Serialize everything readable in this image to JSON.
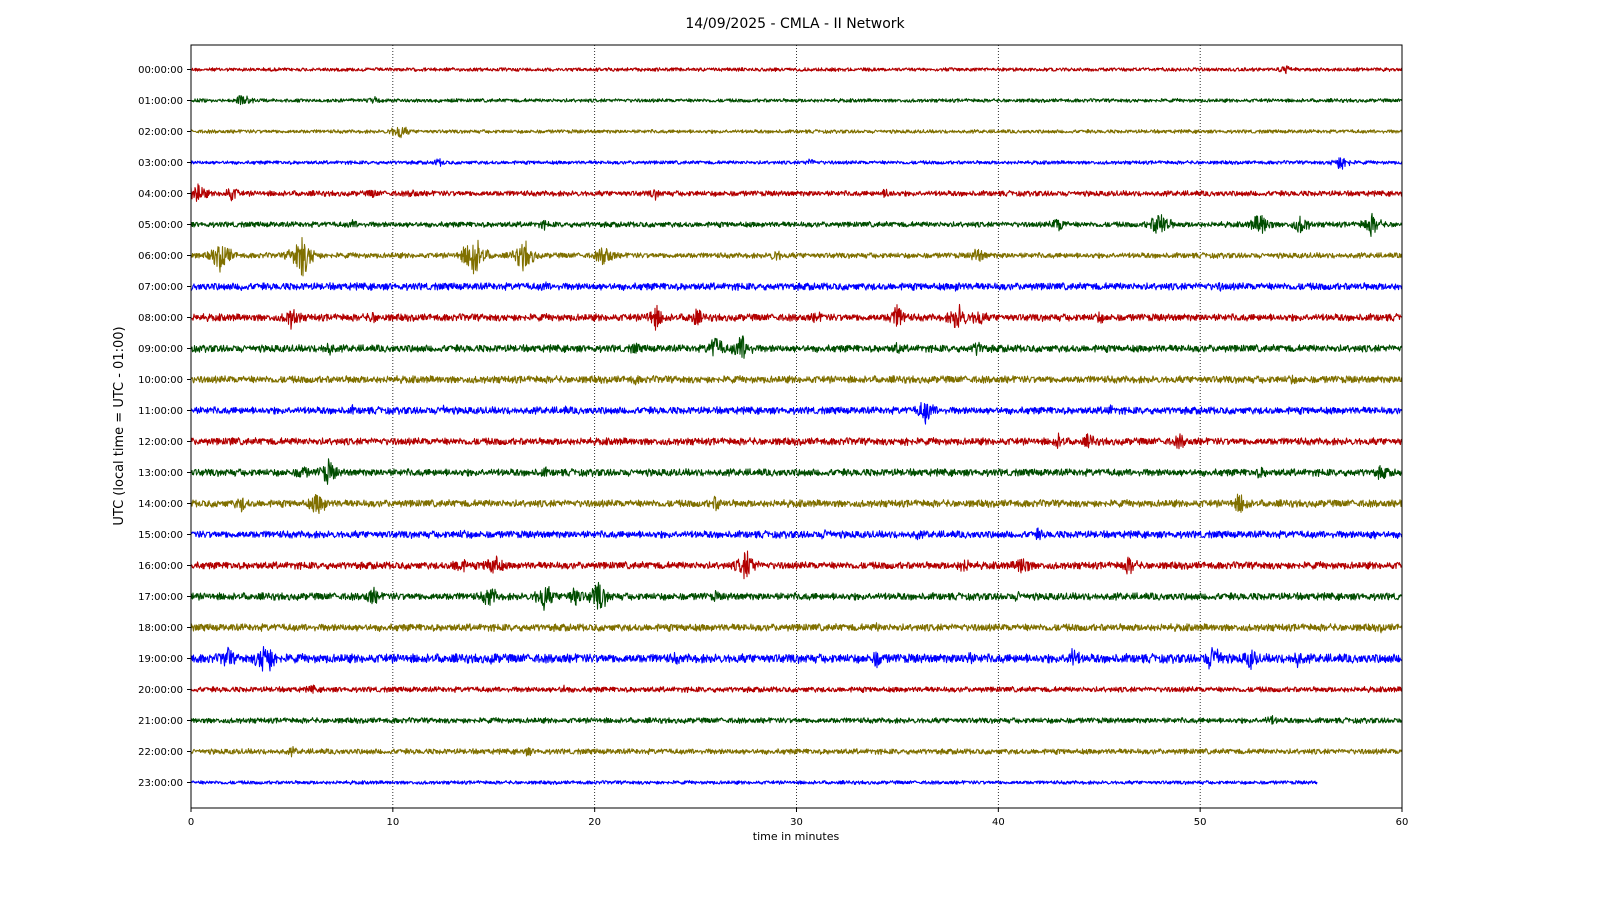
{
  "chart_data": {
    "type": "line",
    "title": "14/09/2025 - CMLA - II Network",
    "xlabel": "time in minutes",
    "ylabel": "UTC (local time = UTC - 01:00)",
    "xlim": [
      0,
      60
    ],
    "xticks": [
      0,
      10,
      20,
      30,
      40,
      50,
      60
    ],
    "grid": "vertical dotted lines at x ticks",
    "legend": "none",
    "colors": [
      "#b30000",
      "#004d00",
      "#807000",
      "#0000ff"
    ],
    "series": [
      {
        "label": "00:00:00",
        "color": "#b30000",
        "amp": 2,
        "end": 60,
        "events": [
          [
            54.2,
            6
          ]
        ]
      },
      {
        "label": "01:00:00",
        "color": "#004d00",
        "amp": 2,
        "end": 60,
        "events": [
          [
            2.6,
            8
          ],
          [
            9.1,
            5
          ]
        ]
      },
      {
        "label": "02:00:00",
        "color": "#807000",
        "amp": 2,
        "end": 60,
        "events": [
          [
            10.3,
            10
          ]
        ]
      },
      {
        "label": "03:00:00",
        "color": "#0000ff",
        "amp": 2,
        "end": 60,
        "events": [
          [
            12.3,
            5
          ],
          [
            30.7,
            5
          ],
          [
            57.0,
            10
          ]
        ]
      },
      {
        "label": "04:00:00",
        "color": "#b30000",
        "amp": 3,
        "end": 60,
        "events": [
          [
            0.3,
            14
          ],
          [
            2.0,
            10
          ],
          [
            9.0,
            6
          ],
          [
            11.0,
            6
          ],
          [
            23.0,
            7
          ],
          [
            34.5,
            7
          ]
        ]
      },
      {
        "label": "05:00:00",
        "color": "#004d00",
        "amp": 3,
        "end": 60,
        "events": [
          [
            8.0,
            6
          ],
          [
            17.5,
            6
          ],
          [
            43.0,
            10
          ],
          [
            48.0,
            18
          ],
          [
            53.0,
            16
          ],
          [
            55.0,
            12
          ],
          [
            58.5,
            14
          ]
        ]
      },
      {
        "label": "06:00:00",
        "color": "#807000",
        "amp": 3,
        "end": 60,
        "events": [
          [
            1.5,
            20
          ],
          [
            5.5,
            28
          ],
          [
            14.0,
            28
          ],
          [
            16.5,
            20
          ],
          [
            20.5,
            14
          ],
          [
            29.0,
            8
          ],
          [
            39.0,
            10
          ]
        ]
      },
      {
        "label": "07:00:00",
        "color": "#0000ff",
        "amp": 4,
        "end": 60,
        "events": [
          [
            2.5,
            6
          ],
          [
            17.5,
            7
          ],
          [
            38.0,
            7
          ],
          [
            51.0,
            6
          ]
        ]
      },
      {
        "label": "08:00:00",
        "color": "#b30000",
        "amp": 4,
        "end": 60,
        "events": [
          [
            5.0,
            14
          ],
          [
            9.0,
            8
          ],
          [
            23.0,
            16
          ],
          [
            25.0,
            12
          ],
          [
            31.0,
            8
          ],
          [
            35.0,
            16
          ],
          [
            38.0,
            18
          ],
          [
            39.0,
            12
          ],
          [
            45.0,
            8
          ]
        ]
      },
      {
        "label": "09:00:00",
        "color": "#004d00",
        "amp": 4,
        "end": 60,
        "events": [
          [
            6.8,
            10
          ],
          [
            22.0,
            8
          ],
          [
            26.0,
            16
          ],
          [
            27.3,
            18
          ],
          [
            35.0,
            8
          ],
          [
            39.0,
            10
          ]
        ]
      },
      {
        "label": "10:00:00",
        "color": "#807000",
        "amp": 4,
        "end": 60,
        "events": [
          [
            8.0,
            6
          ],
          [
            22.0,
            7
          ],
          [
            54.5,
            7
          ]
        ]
      },
      {
        "label": "11:00:00",
        "color": "#0000ff",
        "amp": 4,
        "end": 60,
        "events": [
          [
            8.0,
            6
          ],
          [
            12.5,
            8
          ],
          [
            18.5,
            6
          ],
          [
            36.4,
            16
          ],
          [
            45.5,
            8
          ]
        ]
      },
      {
        "label": "12:00:00",
        "color": "#b30000",
        "amp": 4,
        "end": 60,
        "events": [
          [
            2.0,
            6
          ],
          [
            35.5,
            7
          ],
          [
            43.0,
            10
          ],
          [
            44.5,
            10
          ],
          [
            49.0,
            10
          ]
        ]
      },
      {
        "label": "13:00:00",
        "color": "#004d00",
        "amp": 4,
        "end": 60,
        "events": [
          [
            5.5,
            10
          ],
          [
            6.8,
            16
          ],
          [
            17.5,
            7
          ],
          [
            53.0,
            8
          ],
          [
            59.0,
            10
          ]
        ]
      },
      {
        "label": "14:00:00",
        "color": "#807000",
        "amp": 4,
        "end": 60,
        "events": [
          [
            2.5,
            10
          ],
          [
            6.3,
            16
          ],
          [
            26.0,
            10
          ],
          [
            52.0,
            14
          ]
        ]
      },
      {
        "label": "15:00:00",
        "color": "#0000ff",
        "amp": 4,
        "end": 60,
        "events": [
          [
            13.5,
            7
          ],
          [
            31.5,
            8
          ],
          [
            36.0,
            7
          ],
          [
            42.0,
            8
          ],
          [
            58.5,
            7
          ]
        ]
      },
      {
        "label": "16:00:00",
        "color": "#b30000",
        "amp": 4,
        "end": 60,
        "events": [
          [
            13.3,
            12
          ],
          [
            15.0,
            16
          ],
          [
            27.5,
            20
          ],
          [
            38.3,
            10
          ],
          [
            41.2,
            14
          ],
          [
            46.5,
            12
          ]
        ]
      },
      {
        "label": "17:00:00",
        "color": "#004d00",
        "amp": 4,
        "end": 60,
        "events": [
          [
            9.0,
            12
          ],
          [
            14.8,
            14
          ],
          [
            17.5,
            18
          ],
          [
            19.0,
            14
          ],
          [
            20.2,
            20
          ],
          [
            26.0,
            7
          ],
          [
            41.0,
            7
          ]
        ]
      },
      {
        "label": "18:00:00",
        "color": "#807000",
        "amp": 4,
        "end": 60,
        "events": [
          [
            24.5,
            6
          ],
          [
            34.0,
            6
          ],
          [
            59.0,
            6
          ]
        ]
      },
      {
        "label": "19:00:00",
        "color": "#0000ff",
        "amp": 5,
        "end": 60,
        "events": [
          [
            1.8,
            14
          ],
          [
            3.7,
            24
          ],
          [
            15.0,
            8
          ],
          [
            24.0,
            8
          ],
          [
            34.0,
            12
          ],
          [
            38.5,
            10
          ],
          [
            43.7,
            14
          ],
          [
            50.7,
            20
          ],
          [
            52.5,
            14
          ],
          [
            54.8,
            12
          ]
        ]
      },
      {
        "label": "20:00:00",
        "color": "#b30000",
        "amp": 3,
        "end": 60,
        "events": [
          [
            6.0,
            6
          ],
          [
            18.5,
            6
          ]
        ]
      },
      {
        "label": "21:00:00",
        "color": "#004d00",
        "amp": 3,
        "end": 60,
        "events": [
          [
            53.5,
            7
          ]
        ]
      },
      {
        "label": "22:00:00",
        "color": "#807000",
        "amp": 3,
        "end": 60,
        "events": [
          [
            5.0,
            6
          ],
          [
            16.7,
            6
          ]
        ]
      },
      {
        "label": "23:00:00",
        "color": "#0000ff",
        "amp": 2,
        "end": 55.8,
        "events": []
      }
    ]
  }
}
